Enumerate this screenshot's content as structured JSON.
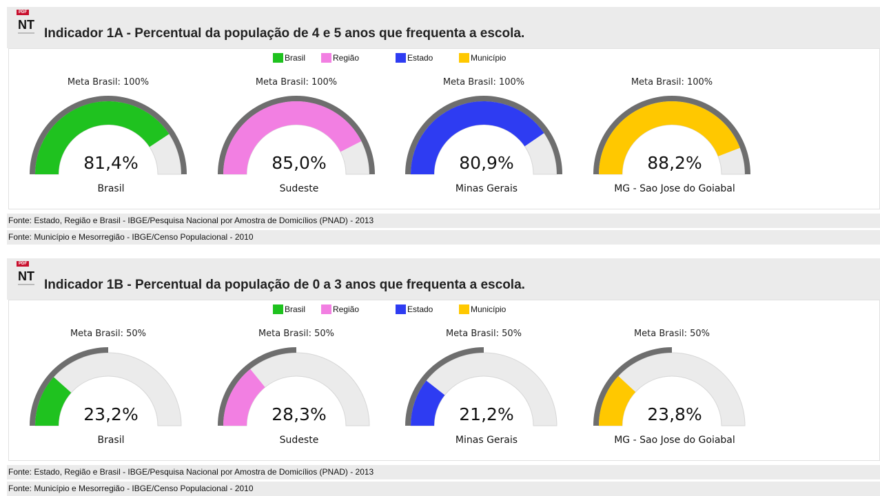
{
  "icon": {
    "badge": "PDF",
    "text": "NT"
  },
  "panels": [
    {
      "title": "Indicador 1A - Percentual da população de 4 e 5 anos que frequenta a escola.",
      "legend": [
        {
          "name": "Brasil",
          "color": "#1fc21f"
        },
        {
          "name": "Região",
          "color": "#f27fe2"
        },
        {
          "name": "Estado",
          "color": "#2e3cf2"
        },
        {
          "name": "Município",
          "color": "#ffc800"
        }
      ],
      "gauges": [
        {
          "meta_label": "Meta Brasil: 100%",
          "meta": 100,
          "value": 81.4,
          "value_label": "81,4%",
          "name": "Brasil"
        },
        {
          "meta_label": "Meta Brasil: 100%",
          "meta": 100,
          "value": 85.0,
          "value_label": "85,0%",
          "name": "Sudeste"
        },
        {
          "meta_label": "Meta Brasil: 100%",
          "meta": 100,
          "value": 80.9,
          "value_label": "80,9%",
          "name": "Minas Gerais"
        },
        {
          "meta_label": "Meta Brasil: 100%",
          "meta": 100,
          "value": 88.2,
          "value_label": "88,2%",
          "name": "MG - Sao Jose do Goiabal"
        }
      ],
      "sources": [
        "Fonte: Estado, Região e Brasil - IBGE/Pesquisa Nacional por Amostra de Domicílios (PNAD) - 2013",
        "Fonte: Município e Mesorregião - IBGE/Censo Populacional - 2010"
      ]
    },
    {
      "title": "Indicador 1B - Percentual da população de 0 a 3 anos que frequenta a escola.",
      "legend": [
        {
          "name": "Brasil",
          "color": "#1fc21f"
        },
        {
          "name": "Região",
          "color": "#f27fe2"
        },
        {
          "name": "Estado",
          "color": "#2e3cf2"
        },
        {
          "name": "Município",
          "color": "#ffc800"
        }
      ],
      "gauges": [
        {
          "meta_label": "Meta Brasil: 50%",
          "meta": 50,
          "value": 23.2,
          "value_label": "23,2%",
          "name": "Brasil"
        },
        {
          "meta_label": "Meta Brasil: 50%",
          "meta": 50,
          "value": 28.3,
          "value_label": "28,3%",
          "name": "Sudeste"
        },
        {
          "meta_label": "Meta Brasil: 50%",
          "meta": 50,
          "value": 21.2,
          "value_label": "21,2%",
          "name": "Minas Gerais"
        },
        {
          "meta_label": "Meta Brasil: 50%",
          "meta": 50,
          "value": 23.8,
          "value_label": "23,8%",
          "name": "MG - Sao Jose do Goiabal"
        }
      ],
      "sources": [
        "Fonte: Estado, Região e Brasil - IBGE/Pesquisa Nacional por Amostra de Domicílios (PNAD) - 2013",
        "Fonte: Município e Mesorregião - IBGE/Censo Populacional - 2010"
      ]
    }
  ]
}
